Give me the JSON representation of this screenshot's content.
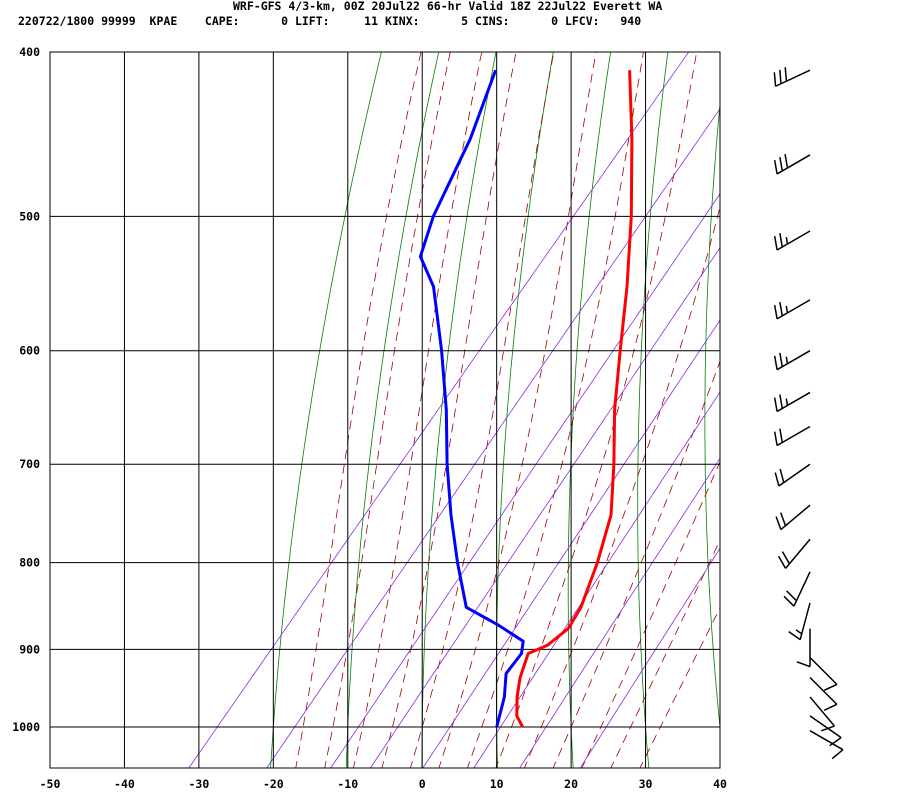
{
  "header": {
    "line1": "WRF-GFS 4/3-km, 00Z 20Jul22 66-hr Valid 18Z 22Jul22 Everett WA",
    "line2": "220722/1800 99999  KPAE    CAPE:      0 LIFT:     11 KINX:      5 CINS:      0 LFCV:   940"
  },
  "chart_data": {
    "type": "line",
    "title": "WRF-GFS 4/3-km, 00Z 20Jul22 66-hr Valid 18Z 22Jul22 Everett WA",
    "xlabel": "",
    "ylabel": "",
    "x_unit": "degC",
    "y_unit": "hPa",
    "xlim": [
      -50,
      40
    ],
    "ylim": [
      1040,
      400
    ],
    "x_ticks": [
      -50,
      -40,
      -30,
      -20,
      -10,
      0,
      10,
      20,
      30,
      40
    ],
    "p_ticks": [
      400,
      500,
      600,
      700,
      800,
      900,
      1000
    ],
    "skew_deg_per_log_decade": 183,
    "grid": true,
    "legend": "none",
    "series": [
      {
        "color": "#ff0000",
        "points": [
          {
            "p": 1000,
            "t": 13.5
          },
          {
            "p": 985,
            "t": 11.5
          },
          {
            "p": 960,
            "t": 9.5
          },
          {
            "p": 935,
            "t": 7.8
          },
          {
            "p": 905,
            "t": 6.3
          },
          {
            "p": 895,
            "t": 8.0
          },
          {
            "p": 875,
            "t": 9.0
          },
          {
            "p": 850,
            "t": 8.4
          },
          {
            "p": 800,
            "t": 5.8
          },
          {
            "p": 750,
            "t": 2.5
          },
          {
            "p": 700,
            "t": -2.6
          },
          {
            "p": 650,
            "t": -8.4
          },
          {
            "p": 600,
            "t": -14.0
          },
          {
            "p": 550,
            "t": -20.0
          },
          {
            "p": 500,
            "t": -27.0
          },
          {
            "p": 450,
            "t": -35.3
          },
          {
            "p": 410,
            "t": -43.0
          }
        ]
      },
      {
        "color": "#0000ff",
        "points": [
          {
            "p": 1000,
            "t": 10.0
          },
          {
            "p": 960,
            "t": 7.8
          },
          {
            "p": 930,
            "t": 5.5
          },
          {
            "p": 905,
            "t": 5.4
          },
          {
            "p": 890,
            "t": 4.3
          },
          {
            "p": 870,
            "t": -1.0
          },
          {
            "p": 850,
            "t": -7.0
          },
          {
            "p": 800,
            "t": -13.0
          },
          {
            "p": 750,
            "t": -19.0
          },
          {
            "p": 700,
            "t": -25.0
          },
          {
            "p": 650,
            "t": -31.0
          },
          {
            "p": 600,
            "t": -38.0
          },
          {
            "p": 550,
            "t": -46.0
          },
          {
            "p": 528,
            "t": -51.0
          },
          {
            "p": 500,
            "t": -53.6
          },
          {
            "p": 450,
            "t": -57.0
          },
          {
            "p": 410,
            "t": -61.0
          }
        ]
      }
    ],
    "dry_adiabats_theta_c": [
      -20,
      -10,
      0,
      10,
      20,
      30,
      40,
      50,
      60,
      70,
      80,
      90,
      100,
      110
    ],
    "moist_adiabats_tw_c": [
      -16,
      -12,
      -8,
      -4,
      0,
      4,
      8,
      12,
      16,
      20,
      24,
      28,
      32
    ],
    "mixing_ratio_lines_gkg": [
      0.4,
      1,
      2,
      3,
      5,
      8,
      12,
      20
    ],
    "wind_barbs": [
      {
        "p": 410,
        "dir": 245,
        "spd": 30
      },
      {
        "p": 460,
        "dir": 240,
        "spd": 30
      },
      {
        "p": 510,
        "dir": 240,
        "spd": 25
      },
      {
        "p": 560,
        "dir": 240,
        "spd": 25
      },
      {
        "p": 600,
        "dir": 240,
        "spd": 25
      },
      {
        "p": 635,
        "dir": 240,
        "spd": 25
      },
      {
        "p": 665,
        "dir": 240,
        "spd": 20
      },
      {
        "p": 700,
        "dir": 235,
        "spd": 20
      },
      {
        "p": 740,
        "dir": 230,
        "spd": 20
      },
      {
        "p": 775,
        "dir": 220,
        "spd": 20
      },
      {
        "p": 810,
        "dir": 205,
        "spd": 20
      },
      {
        "p": 845,
        "dir": 195,
        "spd": 15
      },
      {
        "p": 875,
        "dir": 180,
        "spd": 10
      },
      {
        "p": 910,
        "dir": 135,
        "spd": 10
      },
      {
        "p": 935,
        "dir": 135,
        "spd": 10
      },
      {
        "p": 960,
        "dir": 140,
        "spd": 10
      },
      {
        "p": 985,
        "dir": 125,
        "spd": 10
      },
      {
        "p": 1005,
        "dir": 120,
        "spd": 10
      }
    ]
  }
}
